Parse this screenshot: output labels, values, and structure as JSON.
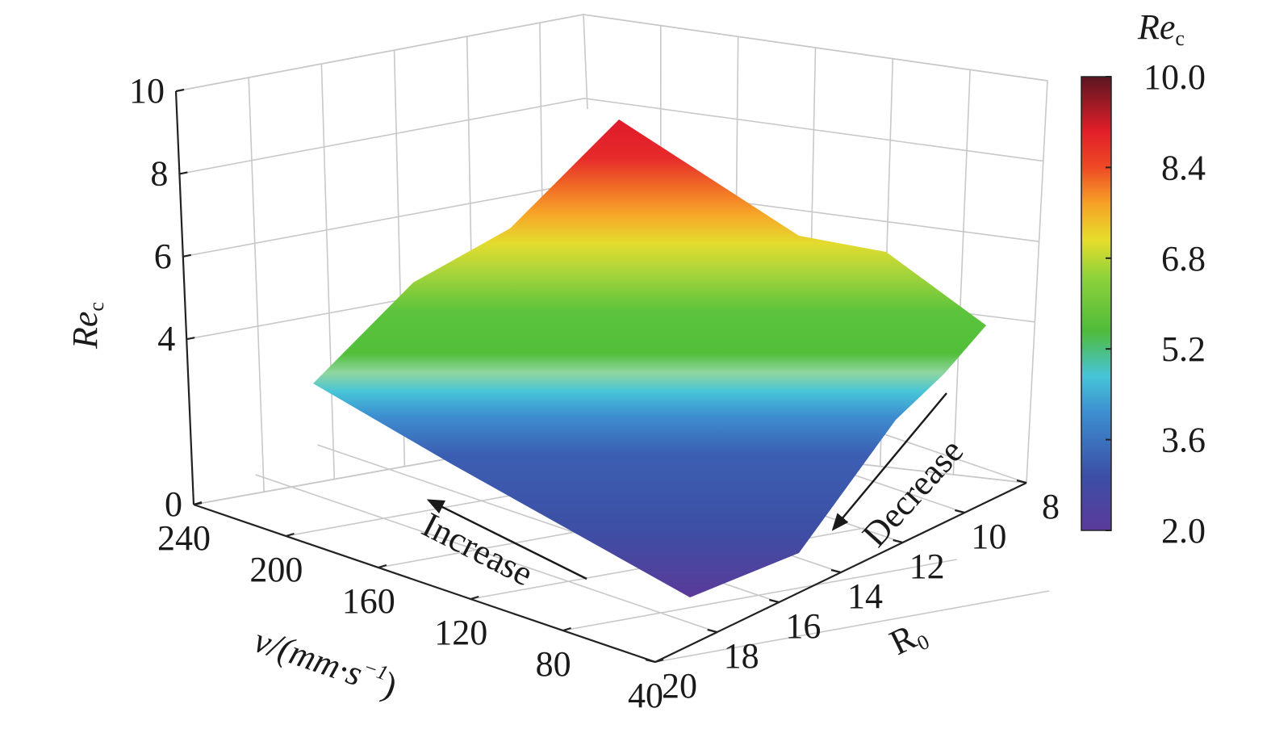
{
  "chart_data": {
    "type": "surface",
    "x_axis": {
      "label": "v/(mm·s",
      "label_sup": "−1",
      "label_end": ")",
      "ticks": [
        40,
        80,
        120,
        160,
        200,
        240
      ]
    },
    "y_axis": {
      "label": "R",
      "label_sub": "0",
      "ticks": [
        8,
        10,
        12,
        14,
        16,
        18,
        20
      ]
    },
    "z_axis": {
      "label": "Re",
      "label_sub": "c",
      "ticks": [
        0,
        4,
        6,
        8,
        10
      ],
      "range": [
        0,
        10
      ]
    },
    "colorbar": {
      "title": "Re",
      "title_sub": "c",
      "ticks": [
        "10.0",
        "8.4",
        "6.8",
        "5.2",
        "3.6",
        "2.0"
      ],
      "range": [
        2.0,
        10.0
      ]
    },
    "annotations": [
      "Increase",
      "Decrease"
    ],
    "surface_corners": [
      {
        "v": 40,
        "R0": 20,
        "Rec": 2.2
      },
      {
        "v": 240,
        "R0": 20,
        "Rec": 5.3
      },
      {
        "v": 40,
        "R0": 8,
        "Rec": 5.6
      },
      {
        "v": 240,
        "R0": 8,
        "Rec": 9.2
      }
    ],
    "grid": true,
    "colormap": "rainbow"
  }
}
